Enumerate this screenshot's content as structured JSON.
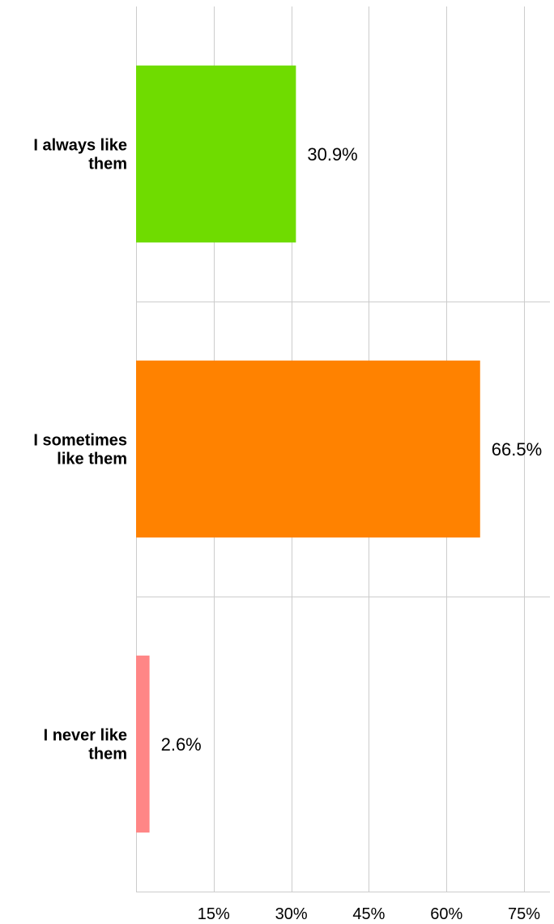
{
  "chart_data": {
    "type": "bar",
    "orientation": "horizontal",
    "categories": [
      [
        "I always like",
        "them"
      ],
      [
        "I sometimes",
        "like them"
      ],
      [
        "I never like",
        "them"
      ]
    ],
    "values": [
      30.9,
      66.5,
      2.6
    ],
    "value_labels": [
      "30.9%",
      "66.5%",
      "2.6%"
    ],
    "colors": [
      "#6fdc00",
      "#ff8200",
      "#ff8686"
    ],
    "xlim": [
      0,
      80
    ],
    "xticks": [
      15,
      30,
      45,
      60,
      75
    ],
    "xtick_labels": [
      "15%",
      "30%",
      "45%",
      "60%",
      "75%"
    ],
    "grid": true
  }
}
